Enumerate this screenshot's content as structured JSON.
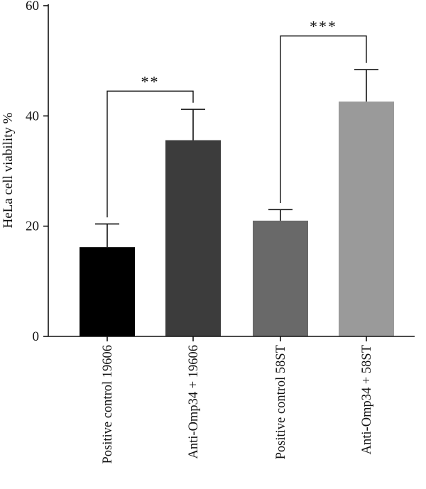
{
  "chart_data": {
    "type": "bar",
    "title": "",
    "xlabel": "",
    "ylabel": "HeLa cell viability %",
    "ylim": [
      0,
      60
    ],
    "yticks": [
      0,
      20,
      40,
      60
    ],
    "grid": false,
    "categories": [
      "Positive control 19606",
      "Anti-Omp34 + 19606",
      "Positive control 58ST",
      "Anti-Omp34 + 58ST"
    ],
    "values": [
      16.2,
      35.6,
      21.0,
      42.6
    ],
    "errors": [
      4.2,
      5.6,
      2.0,
      5.8
    ],
    "colors": [
      "#000000",
      "#3c3c3c",
      "#696969",
      "#9a9a9a"
    ],
    "significance": [
      {
        "from": 0,
        "to": 1,
        "label": "**",
        "level": 44.5
      },
      {
        "from": 2,
        "to": 3,
        "label": "***",
        "level": 54.5
      }
    ]
  }
}
